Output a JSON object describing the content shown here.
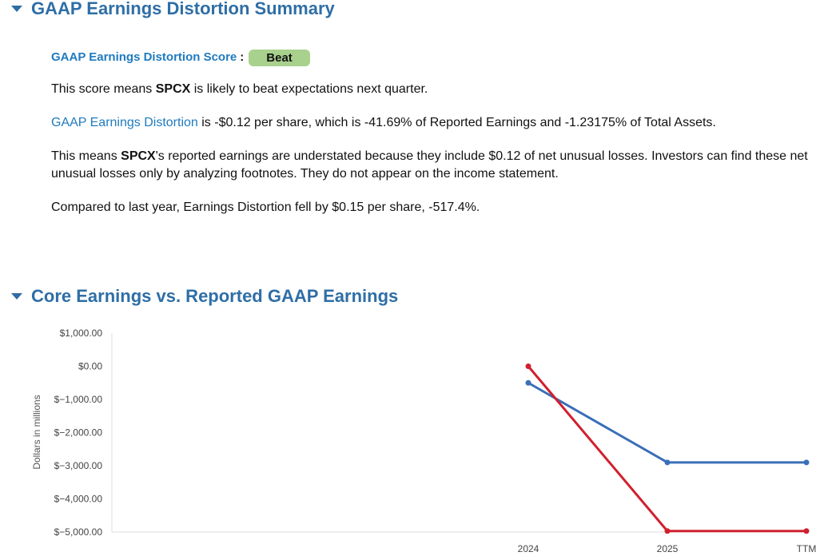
{
  "summary_section": {
    "title": "GAAP Earnings Distortion Summary",
    "score_label": "GAAP Earnings Distortion Score",
    "score_colon": ":",
    "score_value": "Beat",
    "score_color": "#a9d18e",
    "line1_prefix": "This score means ",
    "ticker": "SPCX",
    "line1_suffix": " is likely to beat expectations next quarter.",
    "line2_link": "GAAP Earnings Distortion",
    "line2_text": " is -$0.12 per share, which is -41.69% of Reported Earnings and -1.23175% of Total Assets.",
    "line3_prefix": "This means ",
    "line3_suffix": "'s reported earnings are understated because they include $0.12 of net unusual losses. Investors can find these net unusual losses only by analyzing footnotes. They do not appear on the income statement.",
    "line4": "Compared to last year, Earnings Distortion fell by $0.15 per share, -517.4%."
  },
  "chart_section": {
    "title": "Core Earnings vs. Reported GAAP Earnings"
  },
  "chart_data": {
    "type": "line",
    "title": "",
    "xlabel": "",
    "ylabel": "Dollars in millions",
    "categories": [
      "",
      "",
      "",
      "2024",
      "2025",
      "TTM"
    ],
    "y_ticks": [
      1000,
      0,
      -1000,
      -2000,
      -3000,
      -4000,
      -5000
    ],
    "y_tick_labels": [
      "$1,000.00",
      "$0.00",
      "$−1,000.00",
      "$−2,000.00",
      "$−3,000.00",
      "$−4,000.00",
      "$−5,000.00"
    ],
    "ylim": [
      -5000,
      1000
    ],
    "grid": false,
    "series": [
      {
        "color": "#3a6fb8",
        "values": [
          null,
          null,
          null,
          -500,
          -2900,
          -2900
        ]
      },
      {
        "color": "#d0202e",
        "values": [
          null,
          null,
          null,
          0,
          -4970,
          -4970
        ]
      }
    ]
  }
}
